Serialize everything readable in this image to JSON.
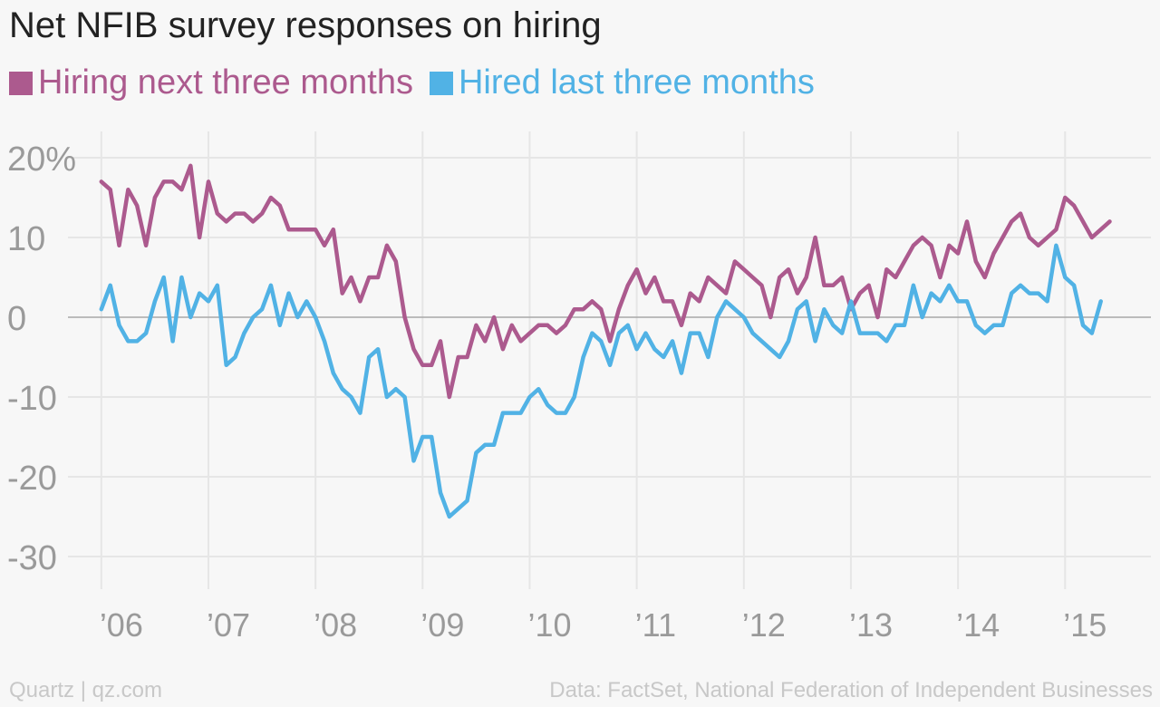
{
  "chart_data": {
    "type": "line",
    "title": "Net NFIB survey responses on hiring",
    "ylabel": "",
    "xlabel": "",
    "ylim": [
      -35,
      22
    ],
    "yticks": [
      20,
      10,
      0,
      -10,
      -20,
      -30
    ],
    "ytick_labels": [
      "20%",
      "10",
      "0",
      "-10",
      "-20",
      "-30"
    ],
    "xticks": [
      2006,
      2007,
      2008,
      2009,
      2010,
      2011,
      2012,
      2013,
      2014,
      2015
    ],
    "xtick_labels": [
      "’06",
      "’07",
      "’08",
      "’09",
      "’10",
      "’11",
      "’12",
      "’13",
      "’14",
      "’15"
    ],
    "xlim": [
      2005.9,
      2015.7
    ],
    "x_start": 2006.0,
    "x_step_months": 1,
    "grid": true,
    "legend_position": "top-left",
    "series": [
      {
        "name": "Hiring next three months",
        "color": "#ac5a8e",
        "values": [
          17,
          16,
          9,
          16,
          14,
          9,
          15,
          17,
          17,
          16,
          19,
          10,
          17,
          13,
          12,
          13,
          13,
          12,
          13,
          15,
          14,
          11,
          11,
          11,
          11,
          9,
          11,
          3,
          5,
          2,
          5,
          5,
          9,
          7,
          0,
          -4,
          -6,
          -6,
          -3,
          -10,
          -5,
          -5,
          -1,
          -3,
          0,
          -4,
          -1,
          -3,
          -2,
          -1,
          -1,
          -2,
          -1,
          1,
          1,
          2,
          1,
          -3,
          1,
          4,
          6,
          3,
          5,
          2,
          2,
          -1,
          3,
          2,
          5,
          4,
          3,
          7,
          6,
          5,
          4,
          0,
          5,
          6,
          3,
          5,
          10,
          4,
          4,
          5,
          1,
          3,
          4,
          0,
          6,
          5,
          7,
          9,
          10,
          9,
          5,
          9,
          8,
          12,
          7,
          5,
          8,
          10,
          12,
          13,
          10,
          9,
          10,
          11,
          15,
          14,
          12,
          10,
          11,
          12
        ]
      },
      {
        "name": "Hired last three months",
        "color": "#51b2e5",
        "values": [
          1,
          4,
          -1,
          -3,
          -3,
          -2,
          2,
          5,
          -3,
          5,
          0,
          3,
          2,
          4,
          -6,
          -5,
          -2,
          0,
          1,
          4,
          -1,
          3,
          0,
          2,
          0,
          -3,
          -7,
          -9,
          -10,
          -12,
          -5,
          -4,
          -10,
          -9,
          -10,
          -18,
          -15,
          -15,
          -22,
          -25,
          -24,
          -23,
          -17,
          -16,
          -16,
          -12,
          -12,
          -12,
          -10,
          -9,
          -11,
          -12,
          -12,
          -10,
          -5,
          -2,
          -3,
          -6,
          -2,
          -1,
          -4,
          -2,
          -4,
          -5,
          -3,
          -7,
          -2,
          -2,
          -5,
          0,
          2,
          1,
          0,
          -2,
          -3,
          -4,
          -5,
          -3,
          1,
          2,
          -3,
          1,
          -1,
          -2,
          2,
          -2,
          -2,
          -2,
          -3,
          -1,
          -1,
          4,
          0,
          3,
          2,
          4,
          2,
          2,
          -1,
          -2,
          -1,
          -1,
          3,
          4,
          3,
          3,
          2,
          9,
          5,
          4,
          -1,
          -2,
          2
        ]
      }
    ]
  },
  "footer": {
    "left": "Quartz | qz.com",
    "right": "Data: FactSet, National Federation of Independent Businesses"
  }
}
